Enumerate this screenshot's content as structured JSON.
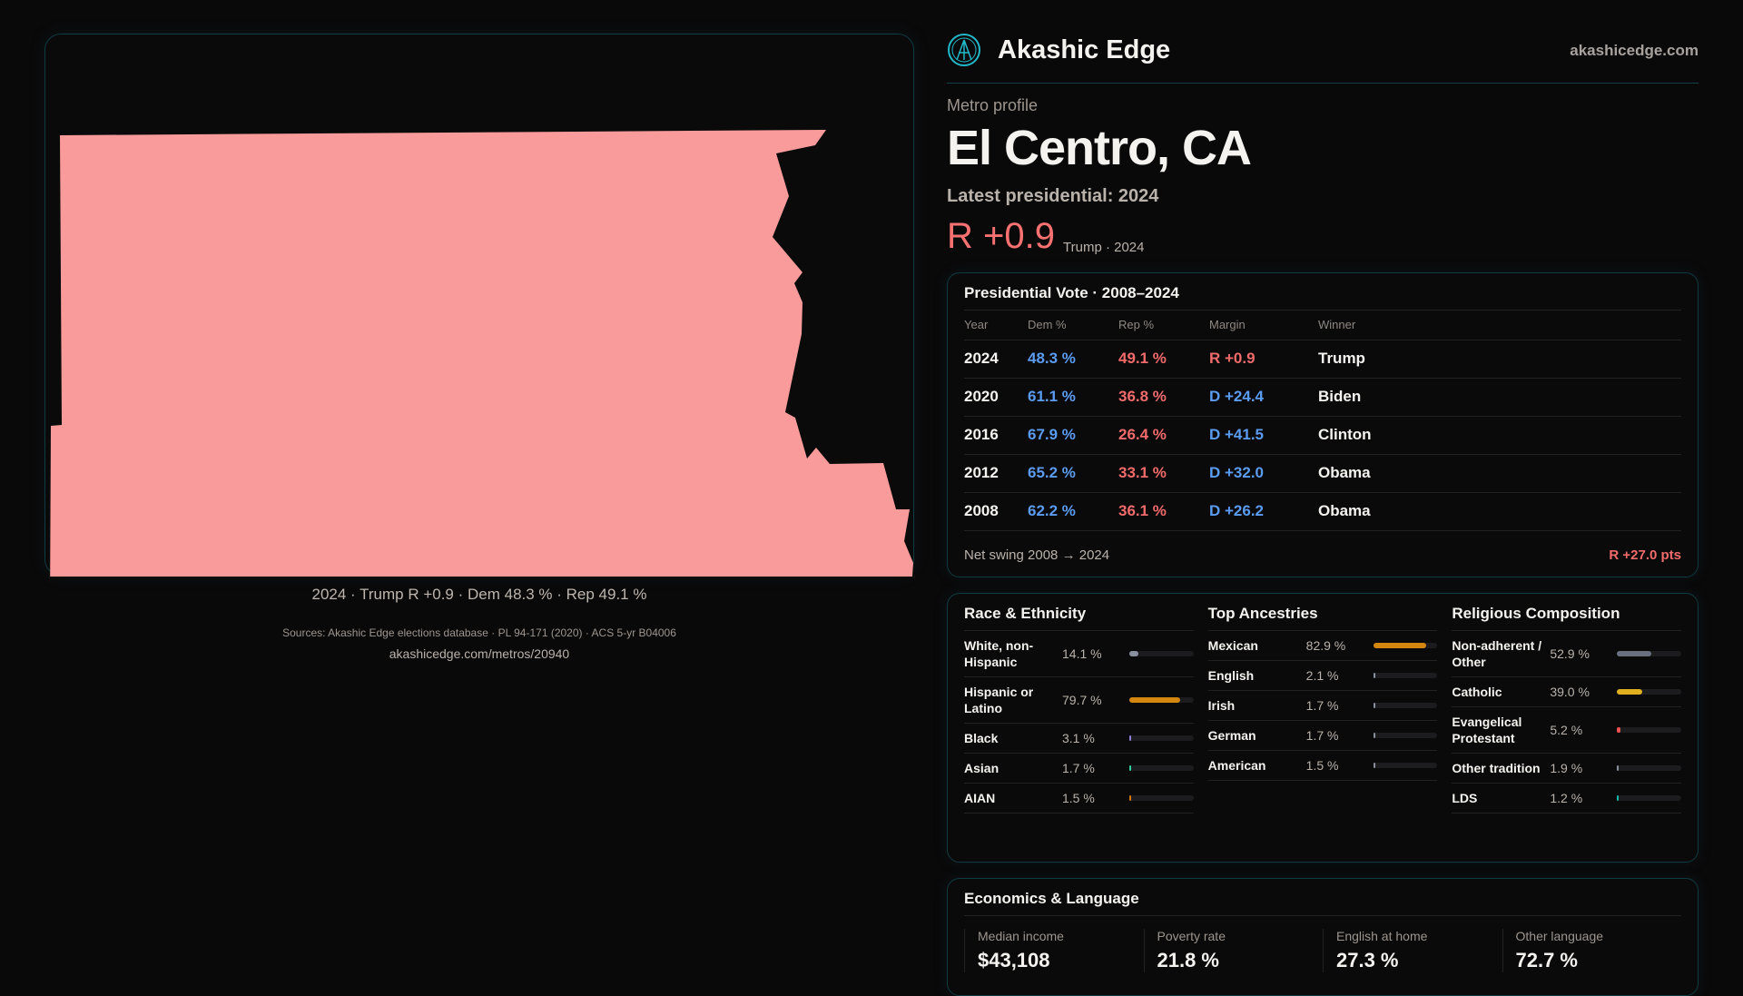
{
  "map": {
    "caption": "2024 · Trump R +0.9 · Dem 48.3 % · Rep 49.1 %",
    "fill_color": "#f99b9b"
  },
  "header": {
    "brand": "Akashic Edge",
    "site": "akashicedge.com",
    "logo_icon": "akashic-logo-icon"
  },
  "profile": {
    "kicker": "Metro profile",
    "title": "El Centro, CA",
    "latest": "Latest presidential: 2024",
    "margin": "R +0.9",
    "margin_sub": "Trump · 2024"
  },
  "vote": {
    "title": "Presidential Vote · 2008–2024",
    "headers": [
      "Year",
      "Dem %",
      "Rep %",
      "Margin",
      "Winner"
    ],
    "rows": [
      {
        "year": "2024",
        "dem": "48.3 %",
        "rep": "49.1 %",
        "margin": "R +0.9",
        "party": "R",
        "winner": "Trump"
      },
      {
        "year": "2020",
        "dem": "61.1 %",
        "rep": "36.8 %",
        "margin": "D +24.4",
        "party": "D",
        "winner": "Biden"
      },
      {
        "year": "2016",
        "dem": "67.9 %",
        "rep": "26.4 %",
        "margin": "D +41.5",
        "party": "D",
        "winner": "Clinton"
      },
      {
        "year": "2012",
        "dem": "65.2 %",
        "rep": "33.1 %",
        "margin": "D +32.0",
        "party": "D",
        "winner": "Obama"
      },
      {
        "year": "2008",
        "dem": "62.2 %",
        "rep": "36.1 %",
        "margin": "D +26.2",
        "party": "D",
        "winner": "Obama"
      }
    ],
    "swing_label": "Net swing 2008 → 2024",
    "swing_value": "R +27.0 pts"
  },
  "race": {
    "title": "Race & Ethnicity",
    "items": [
      {
        "label": "White, non-Hispanic",
        "value": "14.1 %",
        "pct": 14.1,
        "color": "#8a90a0"
      },
      {
        "label": "Hispanic or Latino",
        "value": "79.7 %",
        "pct": 79.7,
        "color": "#d4870f"
      },
      {
        "label": "Black",
        "value": "3.1 %",
        "pct": 3.1,
        "color": "#8b7fd6"
      },
      {
        "label": "Asian",
        "value": "1.7 %",
        "pct": 1.7,
        "color": "#2dd4a0"
      },
      {
        "label": "AIAN",
        "value": "1.5 %",
        "pct": 1.5,
        "color": "#d97706"
      }
    ]
  },
  "ancestry": {
    "title": "Top Ancestries",
    "items": [
      {
        "label": "Mexican",
        "value": "82.9 %",
        "pct": 82.9,
        "color": "#d4870f"
      },
      {
        "label": "English",
        "value": "2.1 %",
        "pct": 2.1,
        "color": "#8a90a0"
      },
      {
        "label": "Irish",
        "value": "1.7 %",
        "pct": 1.7,
        "color": "#8a90a0"
      },
      {
        "label": "German",
        "value": "1.7 %",
        "pct": 1.7,
        "color": "#8a90a0"
      },
      {
        "label": "American",
        "value": "1.5 %",
        "pct": 1.5,
        "color": "#8a90a0"
      }
    ]
  },
  "religion": {
    "title": "Religious Composition",
    "items": [
      {
        "label": "Non-adherent / Other",
        "value": "52.9 %",
        "pct": 52.9,
        "color": "#6b7080"
      },
      {
        "label": "Catholic",
        "value": "39.0 %",
        "pct": 39.0,
        "color": "#e0b020"
      },
      {
        "label": "Evangelical Protestant",
        "value": "5.2 %",
        "pct": 5.2,
        "color": "#ef5350"
      },
      {
        "label": "Other tradition",
        "value": "1.9 %",
        "pct": 1.9,
        "color": "#8a90a0"
      },
      {
        "label": "LDS",
        "value": "1.2 %",
        "pct": 1.2,
        "color": "#14b8a6"
      }
    ]
  },
  "econ": {
    "title": "Economics & Language",
    "stats": [
      {
        "label": "Median income",
        "value": "$43,108"
      },
      {
        "label": "Poverty rate",
        "value": "21.8 %"
      },
      {
        "label": "English at home",
        "value": "27.3 %"
      },
      {
        "label": "Other language",
        "value": "72.7 %"
      }
    ]
  },
  "footer": {
    "sources": "Sources: Akashic Edge elections database · PL 94-171 (2020) · ACS 5-yr B04006",
    "url": "akashicedge.com/metros/20940"
  }
}
